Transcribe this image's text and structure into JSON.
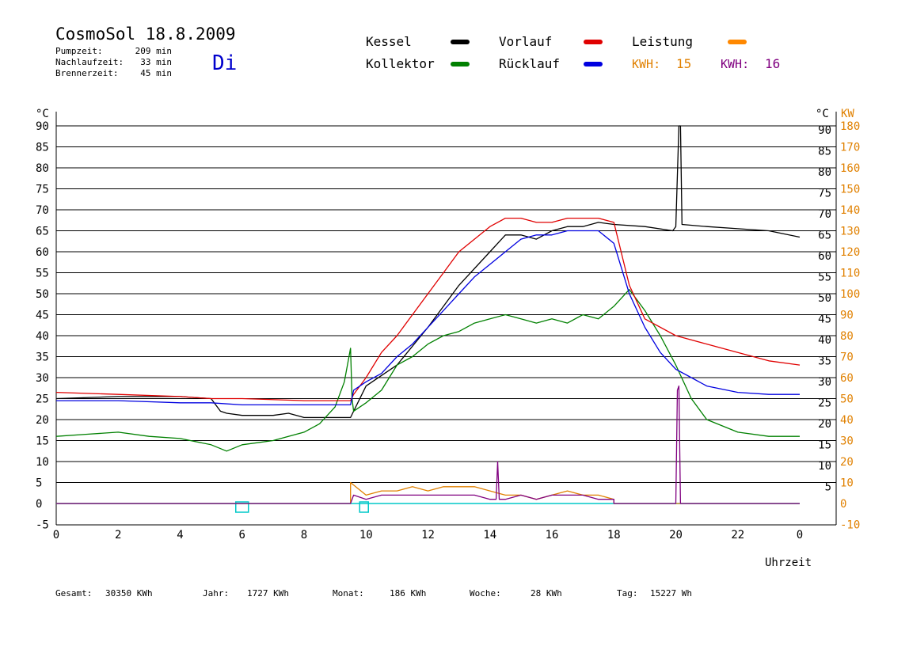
{
  "header": {
    "title": "CosmoSol 18.8.2009",
    "stats": [
      {
        "label": "Pumpzeit:",
        "value": "209 min"
      },
      {
        "label": "Nachlaufzeit:",
        "value": "33 min"
      },
      {
        "label": "Brennerzeit:",
        "value": "45 min"
      }
    ],
    "weekday": "Di"
  },
  "legend": {
    "items": [
      {
        "label": "Kessel",
        "color": "#000000"
      },
      {
        "label": "Kollektor",
        "color": "#008000"
      },
      {
        "label": "Vorlauf",
        "color": "#e00000"
      },
      {
        "label": "Rücklauf",
        "color": "#0000e0"
      },
      {
        "label": "Leistung",
        "color": "#ff8800"
      }
    ],
    "kwh": [
      {
        "label": "KWH:",
        "value": "15",
        "color": "#e08000"
      },
      {
        "label": "KWH:",
        "value": "16",
        "color": "#800080"
      }
    ]
  },
  "footer": {
    "items": [
      {
        "label": "Gesamt:",
        "value": "30350 KWh"
      },
      {
        "label": "Jahr:",
        "value": "1727 KWh"
      },
      {
        "label": "Monat:",
        "value": "186 KWh"
      },
      {
        "label": "Woche:",
        "value": "28 KWh"
      },
      {
        "label": "Tag:",
        "value": "15227 Wh"
      }
    ]
  },
  "chart_data": {
    "type": "line",
    "xlabel": "Uhrzeit",
    "x_ticks": [
      "0",
      "2",
      "4",
      "6",
      "8",
      "10",
      "12",
      "14",
      "16",
      "18",
      "20",
      "22",
      "0"
    ],
    "xlim": [
      0,
      24
    ],
    "ylim": [
      -5,
      95
    ],
    "y_left_unit": "°C",
    "y_left_ticks": [
      -5,
      0,
      5,
      10,
      15,
      20,
      25,
      30,
      35,
      40,
      45,
      50,
      55,
      60,
      65,
      70,
      75,
      80,
      85,
      90
    ],
    "y_right_unit": "°C",
    "y_right_ticks": [
      5,
      10,
      15,
      20,
      25,
      30,
      35,
      40,
      45,
      50,
      55,
      60,
      65,
      70,
      75,
      80,
      85,
      90
    ],
    "y2_unit": "KW",
    "y2_ticks": [
      -10,
      0,
      10,
      20,
      30,
      40,
      50,
      60,
      70,
      80,
      90,
      100,
      110,
      120,
      130,
      140,
      150,
      160,
      170,
      180
    ],
    "grid": true,
    "series": [
      {
        "name": "Kessel",
        "color": "#000000",
        "x": [
          0,
          2,
          4,
          5,
          5.3,
          5.5,
          6,
          7,
          7.5,
          8,
          9,
          9.5,
          9.6,
          10,
          11,
          12,
          13,
          14,
          14.5,
          15,
          15.5,
          16,
          16.5,
          17,
          17.5,
          18,
          19,
          19.9,
          20.0,
          20.1,
          20.15,
          20.2,
          21,
          22,
          23,
          24
        ],
        "y": [
          25,
          25.5,
          25.5,
          25,
          22,
          21.5,
          21,
          21,
          21.5,
          20.5,
          20.5,
          20.5,
          22,
          28,
          33,
          42,
          52,
          60,
          64,
          64,
          63,
          65,
          66,
          66,
          67,
          66.5,
          66,
          65,
          66,
          90,
          90,
          66.5,
          66,
          65.5,
          65,
          63.5
        ]
      },
      {
        "name": "Kollektor",
        "color": "#008000",
        "x": [
          0,
          1,
          2,
          3,
          4,
          5,
          5.5,
          6,
          7,
          8,
          8.5,
          9,
          9.3,
          9.5,
          9.55,
          9.6,
          10,
          10.5,
          11,
          11.5,
          12,
          12.5,
          13,
          13.5,
          14,
          14.5,
          15,
          15.5,
          16,
          16.5,
          17,
          17.5,
          18,
          18.5,
          19,
          19.5,
          20,
          20.5,
          21,
          22,
          23,
          24
        ],
        "y": [
          16,
          16.5,
          17,
          16,
          15.5,
          14,
          12.5,
          14,
          15,
          17,
          19,
          23,
          29,
          37,
          25,
          22,
          24,
          27,
          33,
          35,
          38,
          40,
          41,
          43,
          44,
          45,
          44,
          43,
          44,
          43,
          45,
          44,
          47,
          51,
          46,
          40,
          33,
          25,
          20,
          17,
          16,
          16
        ]
      },
      {
        "name": "Vorlauf",
        "color": "#e00000",
        "x": [
          0,
          2,
          4,
          5,
          6,
          8,
          9.5,
          9.6,
          10,
          10.5,
          11,
          11.5,
          12,
          12.5,
          13,
          13.5,
          14,
          14.5,
          15,
          15.5,
          16,
          16.5,
          17,
          17.5,
          18,
          18.5,
          19,
          20,
          21,
          22,
          23,
          24
        ],
        "y": [
          26.5,
          26,
          25.5,
          25,
          25,
          24.5,
          24.5,
          26,
          30,
          36,
          40,
          45,
          50,
          55,
          60,
          63,
          66,
          68,
          68,
          67,
          67,
          68,
          68,
          68,
          67,
          52,
          44,
          40,
          38,
          36,
          34,
          33
        ]
      },
      {
        "name": "Rücklauf",
        "color": "#0000e0",
        "x": [
          0,
          2,
          4,
          5,
          6,
          8,
          9.5,
          9.6,
          10,
          10.5,
          11,
          11.5,
          12,
          12.5,
          13,
          13.5,
          14,
          14.5,
          15,
          15.5,
          16,
          16.5,
          17,
          17.5,
          18,
          18.5,
          19,
          19.5,
          20,
          20.5,
          21,
          22,
          23,
          24
        ],
        "y": [
          24.5,
          24.5,
          24,
          24,
          23.5,
          23.5,
          23.5,
          27,
          29,
          31,
          35,
          38,
          42,
          46,
          50,
          54,
          57,
          60,
          63,
          64,
          64,
          65,
          65,
          65,
          62,
          50,
          42,
          36,
          32,
          30,
          28,
          26.5,
          26,
          26
        ]
      },
      {
        "name": "Leistung",
        "color": "#e08000",
        "x": [
          0,
          9.5,
          9.5,
          10,
          10.5,
          11,
          11.5,
          12,
          12.5,
          13,
          13.5,
          14,
          14.5,
          15,
          15.5,
          16,
          16.5,
          17,
          17.5,
          18,
          18,
          20,
          20,
          24
        ],
        "y": [
          0,
          0,
          5,
          2,
          3,
          3,
          4,
          3,
          4,
          4,
          4,
          3,
          2,
          2,
          1,
          2,
          3,
          2,
          2,
          1,
          0,
          0,
          0,
          0
        ]
      },
      {
        "name": "Leistung KWH",
        "color": "#800080",
        "x": [
          0,
          9.5,
          9.6,
          10,
          10.5,
          11,
          11.5,
          12,
          12.5,
          13,
          13.5,
          14,
          14.2,
          14.25,
          14.3,
          14.5,
          15,
          15.5,
          16,
          16.5,
          17,
          17.5,
          18,
          18,
          20,
          20.05,
          20.1,
          20.15,
          20.2,
          24
        ],
        "y": [
          0,
          0,
          2,
          1,
          2,
          2,
          2,
          2,
          2,
          2,
          2,
          1,
          1,
          10,
          1,
          1,
          2,
          1,
          2,
          2,
          2,
          1,
          1,
          0,
          0,
          27,
          28,
          0,
          0,
          0
        ]
      }
    ],
    "zero_line": {
      "color": "#00c8c8",
      "value": 0
    },
    "markers": [
      {
        "x": 6,
        "color": "#00c8c8"
      },
      {
        "x": 10,
        "color": "#00c8c8"
      }
    ]
  }
}
